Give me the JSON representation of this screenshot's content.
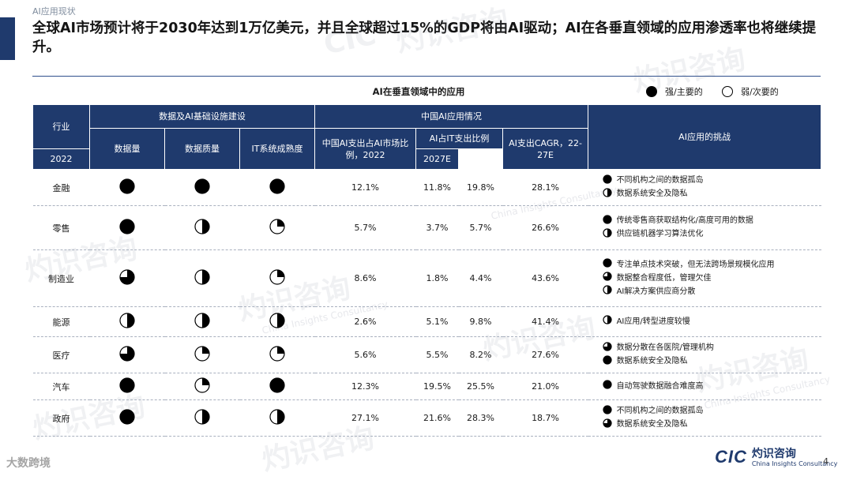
{
  "section_label": "AI应用现状",
  "headline": "全球AI市场预计将于2030年达到1万亿美元，并且全球超过15%的GDP将由AI驱动；AI在各垂直领域的应用渗透率也将继续提升。",
  "table_title": "AI在垂直领域中的应用",
  "legend": {
    "strong": "强/主要的",
    "weak": "弱/次要的"
  },
  "headers": {
    "industry": "行业",
    "infra_group": "数据及AI基础设施建设",
    "data_volume": "数据量",
    "data_quality": "数据质量",
    "it_maturity": "IT系统成熟度",
    "china_group": "中国AI应用情况",
    "ai_share": "中国AI支出占AI市场比例，2022",
    "it_share_group": "AI占IT支出比例",
    "y2022": "2022",
    "y2027": "2027E",
    "cagr": "AI支出CAGR，22-27E",
    "challenges": "AI应用的挑战"
  },
  "rows": [
    {
      "industry": "金融",
      "volume": 1.0,
      "quality": 1.0,
      "maturity": 1.0,
      "ai_share": "12.1%",
      "it2022": "11.8%",
      "it2027": "19.8%",
      "cagr": "28.1%",
      "challenges": [
        {
          "level": 1.0,
          "text": "不同机构之间的数据孤岛"
        },
        {
          "level": 0.5,
          "text": "数据系统安全及隐私"
        }
      ]
    },
    {
      "industry": "零售",
      "volume": 1.0,
      "quality": 0.5,
      "maturity": 0.25,
      "ai_share": "5.7%",
      "it2022": "3.7%",
      "it2027": "5.7%",
      "cagr": "26.6%",
      "challenges": [
        {
          "level": 1.0,
          "text": "传统零售商获取结构化/高度可用的数据"
        },
        {
          "level": 0.5,
          "text": "供应链机器学习算法优化"
        }
      ]
    },
    {
      "industry": "制造业",
      "volume": 0.75,
      "quality": 0.5,
      "maturity": 0.25,
      "ai_share": "8.6%",
      "it2022": "1.8%",
      "it2027": "4.4%",
      "cagr": "43.6%",
      "challenges": [
        {
          "level": 1.0,
          "text": "专注单点技术突破，但无法跨场景规模化应用"
        },
        {
          "level": 0.75,
          "text": "数据整合程度低，管理欠佳"
        },
        {
          "level": 0.5,
          "text": "AI解决方案供应商分散"
        }
      ]
    },
    {
      "industry": "能源",
      "volume": 0.5,
      "quality": 0.5,
      "maturity": 0.5,
      "ai_share": "2.6%",
      "it2022": "5.1%",
      "it2027": "9.8%",
      "cagr": "41.4%",
      "challenges": [
        {
          "level": 0.5,
          "text": "AI应用/转型进度较慢"
        }
      ]
    },
    {
      "industry": "医疗",
      "volume": 0.75,
      "quality": 0.25,
      "maturity": 0.25,
      "ai_share": "5.6%",
      "it2022": "5.5%",
      "it2027": "8.2%",
      "cagr": "27.6%",
      "challenges": [
        {
          "level": 0.75,
          "text": "数据分散在各医院/管理机构"
        },
        {
          "level": 1.0,
          "text": "数据系统安全及隐私"
        }
      ]
    },
    {
      "industry": "汽车",
      "volume": 1.0,
      "quality": 0.25,
      "maturity": 1.0,
      "ai_share": "12.3%",
      "it2022": "19.5%",
      "it2027": "25.5%",
      "cagr": "21.0%",
      "challenges": [
        {
          "level": 1.0,
          "text": "自动驾驶数据融合难度高"
        }
      ]
    },
    {
      "industry": "政府",
      "volume": 1.0,
      "quality": 0.5,
      "maturity": 0.5,
      "ai_share": "27.1%",
      "it2022": "21.6%",
      "it2027": "28.3%",
      "cagr": "18.7%",
      "challenges": [
        {
          "level": 1.0,
          "text": "不同机构之间的数据孤岛"
        },
        {
          "level": 0.75,
          "text": "数据系统安全及隐私"
        }
      ]
    }
  ],
  "footer": {
    "cic": "CIC",
    "brand_cn": "灼识咨询",
    "brand_en": "China Insights Consultancy",
    "page": "4",
    "source_tag": "大数跨境"
  },
  "watermark": {
    "cn": "灼识咨询",
    "en": "China Insights Consultancy",
    "mark": "CIC"
  },
  "colors": {
    "navy": "#1f3a6d",
    "text": "#1a1a1a"
  }
}
